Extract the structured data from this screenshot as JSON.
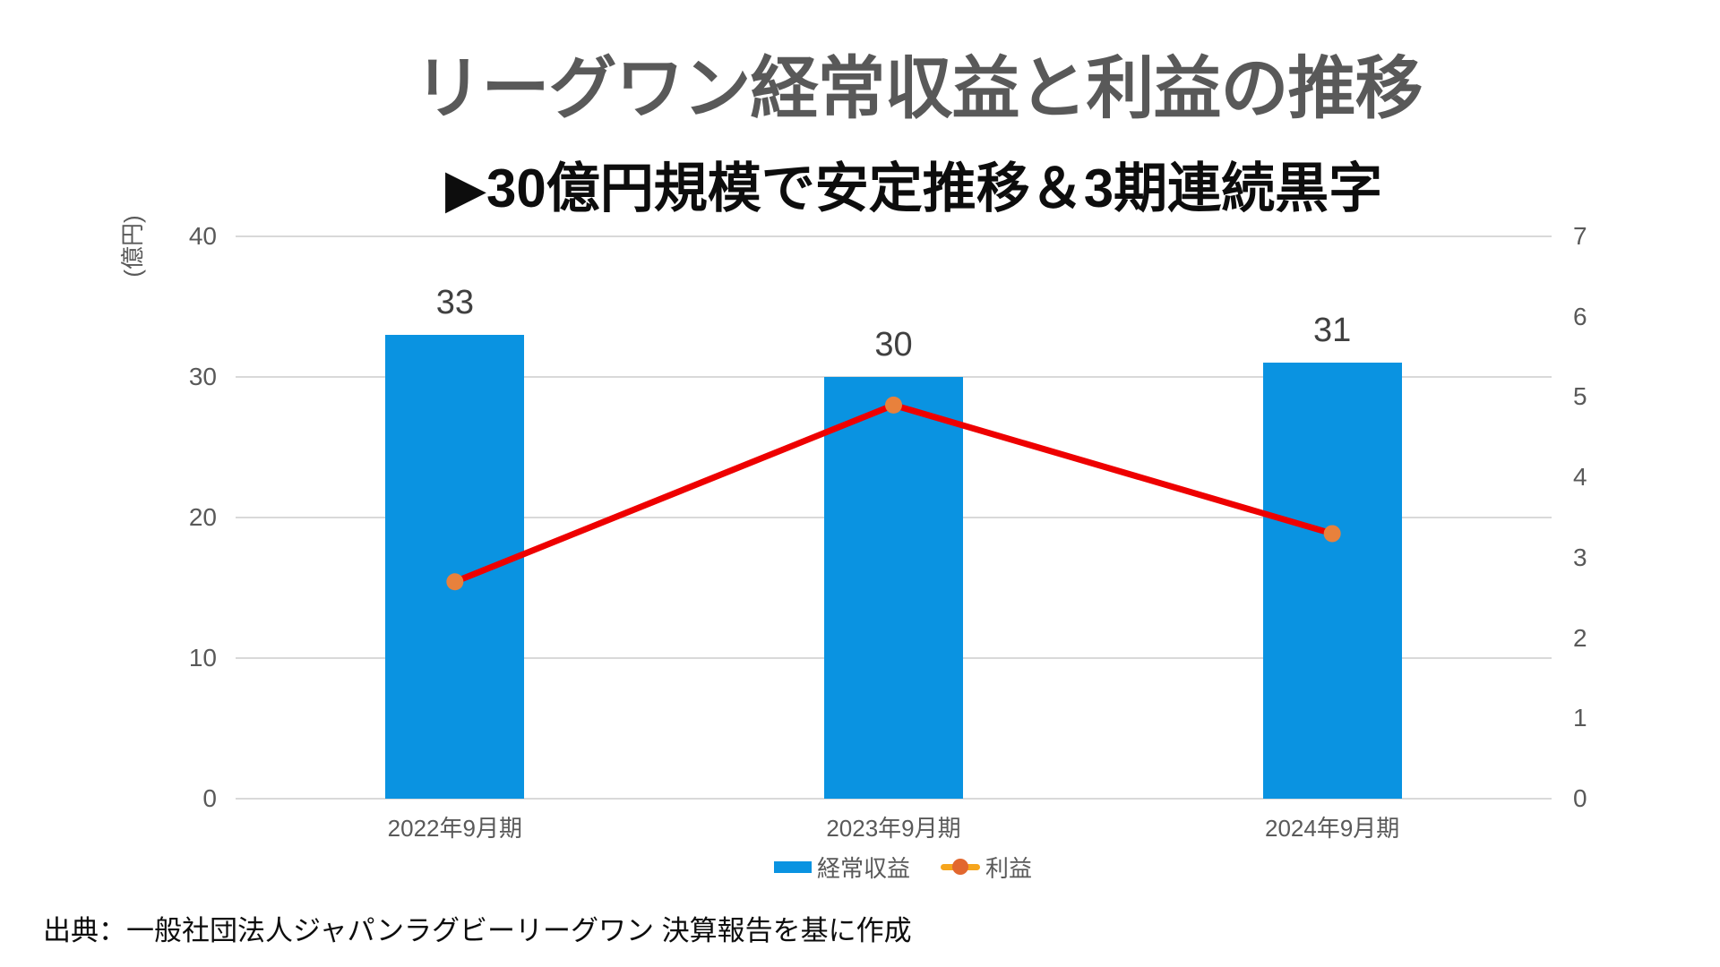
{
  "title": "リーグワン経常収益と利益の推移",
  "subtitle": "▶30億円規模で安定推移＆3期連続黒字",
  "source": "出典：一般社団法人ジャパンラグビーリーグワン 決算報告を基に作成",
  "colors": {
    "bar": "#0a93e1",
    "line": "#ee0000",
    "marker": "#e8813c",
    "legend_line": "#f6a51d",
    "legend_marker": "#e2672e",
    "grid": "#d9d9d9",
    "tick_text": "#595959",
    "data_label_text": "#404040",
    "title_text": "#595959"
  },
  "chart_data": {
    "type": "bar",
    "subtype": "bar+line combo, dual axis",
    "categories": [
      "2022年9月期",
      "2023年9月期",
      "2024年9月期"
    ],
    "series": [
      {
        "name": "経常収益",
        "type": "bar",
        "axis": "left",
        "values": [
          33,
          30,
          31
        ],
        "data_labels": [
          "33",
          "30",
          "31"
        ]
      },
      {
        "name": "利益",
        "type": "line",
        "axis": "right",
        "values": [
          2.7,
          4.9,
          3.3
        ]
      }
    ],
    "left_axis": {
      "label": "(億円)",
      "min": 0,
      "max": 40,
      "ticks": [
        40,
        30,
        20,
        10,
        0
      ]
    },
    "right_axis": {
      "min": 0,
      "max": 7,
      "ticks": [
        7,
        6,
        5,
        4,
        3,
        2,
        1,
        0
      ]
    },
    "grid": true,
    "legend_position": "bottom",
    "title": "リーグワン経常収益と利益の推移",
    "subtitle": "▶30億円規模で安定推移＆3期連続黒字"
  },
  "legend": {
    "items": [
      {
        "label": "経常収益",
        "swatch": "bar-square"
      },
      {
        "label": "利益",
        "swatch": "line-with-dot"
      }
    ]
  }
}
